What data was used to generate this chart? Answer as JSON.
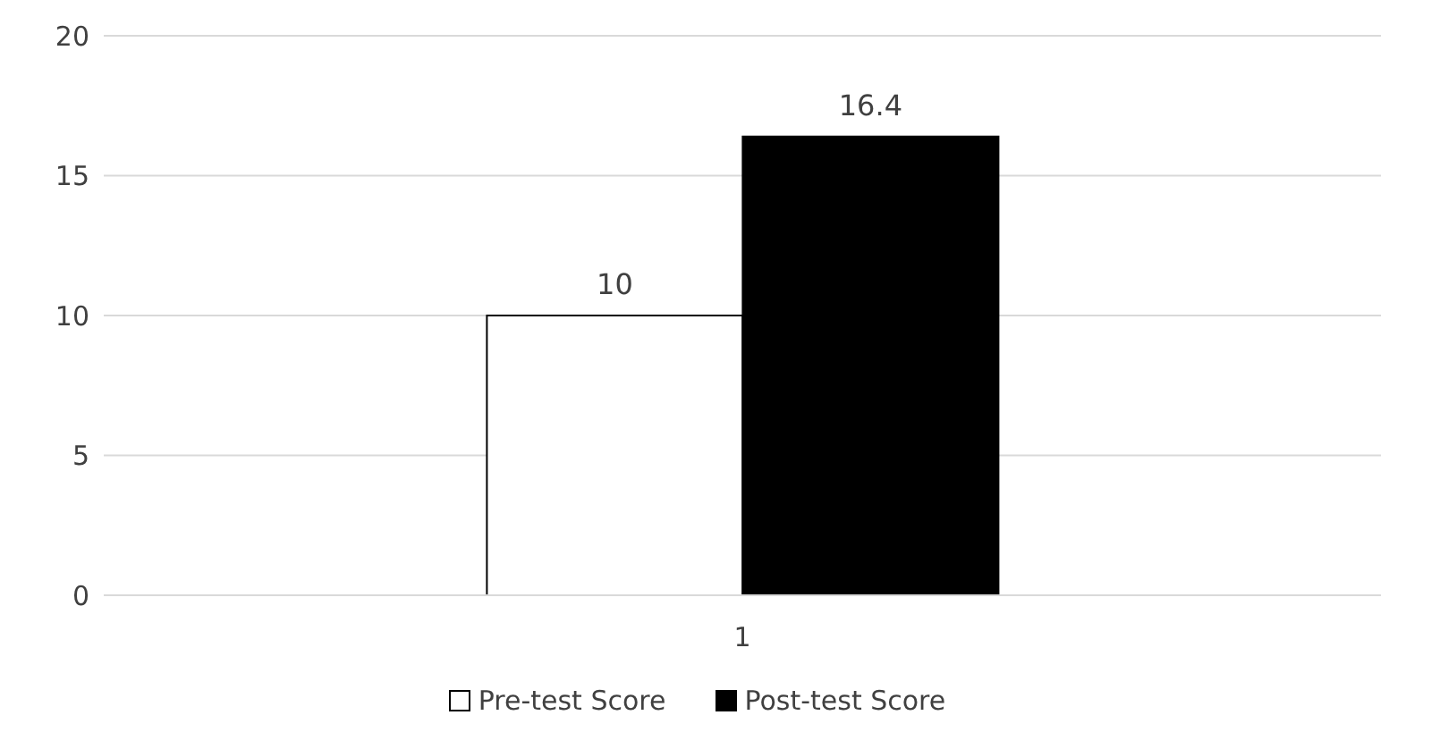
{
  "chart_data": {
    "type": "bar",
    "categories": [
      "1"
    ],
    "series": [
      {
        "name": "Pre-test Score",
        "color": "#ffffff",
        "values": [
          10
        ]
      },
      {
        "name": "Post-test Score",
        "color": "#000000",
        "values": [
          16.4
        ]
      }
    ],
    "ylim": [
      0,
      20
    ],
    "yticks": [
      0,
      5,
      10,
      15,
      20
    ],
    "grid": "y",
    "legend": "bottom",
    "data_labels": true
  }
}
